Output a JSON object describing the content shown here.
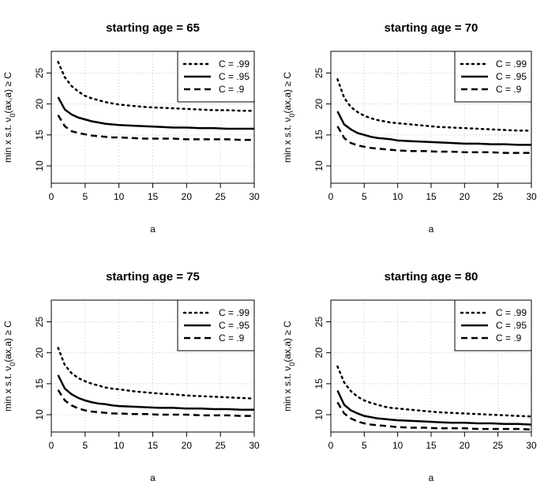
{
  "chart_data": [
    {
      "type": "line",
      "title": "starting age = 65",
      "xlabel": "a",
      "ylabel": {
        "pre": "min  x  s.t.  ",
        "sym": "ν",
        "sub": "0",
        "post": "(ax,a) ≥ C"
      },
      "xlim": [
        0,
        30
      ],
      "ylim": [
        7.2,
        28.5
      ],
      "xticks": [
        0,
        5,
        10,
        15,
        20,
        25,
        30
      ],
      "yticks": [
        10,
        15,
        20,
        25
      ],
      "grid": true,
      "legend_position": "top-right",
      "x": [
        1,
        2,
        3,
        4,
        5,
        6,
        7,
        8,
        9,
        10,
        12,
        14,
        16,
        18,
        20,
        22,
        24,
        26,
        28,
        30
      ],
      "series": [
        {
          "name": "C = .99",
          "style": "dotted",
          "values": [
            26.8,
            24.3,
            22.9,
            22.0,
            21.3,
            20.9,
            20.6,
            20.3,
            20.1,
            19.9,
            19.7,
            19.5,
            19.4,
            19.3,
            19.2,
            19.1,
            19.0,
            19.0,
            18.9,
            18.9
          ]
        },
        {
          "name": "C = .95",
          "style": "solid",
          "values": [
            21.1,
            19.1,
            18.3,
            17.8,
            17.5,
            17.2,
            17.0,
            16.8,
            16.7,
            16.6,
            16.5,
            16.4,
            16.3,
            16.2,
            16.2,
            16.1,
            16.1,
            16.0,
            16.0,
            16.0
          ]
        },
        {
          "name": "C = .9",
          "style": "dashed",
          "values": [
            18.2,
            16.4,
            15.6,
            15.3,
            15.1,
            14.9,
            14.8,
            14.7,
            14.6,
            14.6,
            14.5,
            14.4,
            14.4,
            14.4,
            14.3,
            14.3,
            14.3,
            14.3,
            14.2,
            14.2
          ]
        }
      ]
    },
    {
      "type": "line",
      "title": "starting age = 70",
      "xlabel": "a",
      "ylabel": {
        "pre": "min  x  s.t.  ",
        "sym": "ν",
        "sub": "0",
        "post": "(ax,a) ≥ C"
      },
      "xlim": [
        0,
        30
      ],
      "ylim": [
        7.2,
        28.5
      ],
      "xticks": [
        0,
        5,
        10,
        15,
        20,
        25,
        30
      ],
      "yticks": [
        10,
        15,
        20,
        25
      ],
      "grid": true,
      "legend_position": "top-right",
      "x": [
        1,
        2,
        3,
        4,
        5,
        6,
        7,
        8,
        9,
        10,
        12,
        14,
        16,
        18,
        20,
        22,
        24,
        26,
        28,
        30
      ],
      "series": [
        {
          "name": "C = .99",
          "style": "dotted",
          "values": [
            24.0,
            21.0,
            19.5,
            18.7,
            18.1,
            17.7,
            17.4,
            17.2,
            17.0,
            16.9,
            16.7,
            16.5,
            16.3,
            16.2,
            16.1,
            16.0,
            15.9,
            15.8,
            15.7,
            15.7
          ]
        },
        {
          "name": "C = .95",
          "style": "solid",
          "values": [
            18.8,
            16.7,
            15.9,
            15.3,
            15.0,
            14.7,
            14.5,
            14.4,
            14.3,
            14.1,
            14.0,
            13.9,
            13.8,
            13.7,
            13.6,
            13.6,
            13.5,
            13.5,
            13.4,
            13.4
          ]
        },
        {
          "name": "C = .9",
          "style": "dashed",
          "values": [
            16.4,
            14.5,
            13.7,
            13.3,
            13.1,
            12.9,
            12.8,
            12.7,
            12.6,
            12.5,
            12.4,
            12.4,
            12.3,
            12.3,
            12.2,
            12.2,
            12.2,
            12.1,
            12.1,
            12.1
          ]
        }
      ]
    },
    {
      "type": "line",
      "title": "starting age = 75",
      "xlabel": "a",
      "ylabel": {
        "pre": "min  x  s.t.  ",
        "sym": "ν",
        "sub": "0",
        "post": "(ax,a) ≥ C"
      },
      "xlim": [
        0,
        30
      ],
      "ylim": [
        7.2,
        28.5
      ],
      "xticks": [
        0,
        5,
        10,
        15,
        20,
        25,
        30
      ],
      "yticks": [
        10,
        15,
        20,
        25
      ],
      "grid": true,
      "legend_position": "top-right",
      "x": [
        1,
        2,
        3,
        4,
        5,
        6,
        7,
        8,
        9,
        10,
        12,
        14,
        16,
        18,
        20,
        22,
        24,
        26,
        28,
        30
      ],
      "series": [
        {
          "name": "C = .99",
          "style": "dotted",
          "values": [
            20.8,
            18.0,
            16.7,
            15.9,
            15.4,
            15.0,
            14.7,
            14.4,
            14.2,
            14.1,
            13.8,
            13.6,
            13.4,
            13.3,
            13.1,
            13.0,
            12.9,
            12.8,
            12.7,
            12.6
          ]
        },
        {
          "name": "C = .95",
          "style": "solid",
          "values": [
            16.4,
            14.2,
            13.3,
            12.7,
            12.3,
            12.0,
            11.8,
            11.7,
            11.5,
            11.4,
            11.3,
            11.2,
            11.1,
            11.1,
            11.0,
            11.0,
            10.9,
            10.9,
            10.8,
            10.8
          ]
        },
        {
          "name": "C = .9",
          "style": "dashed",
          "values": [
            14.0,
            12.3,
            11.5,
            11.0,
            10.7,
            10.5,
            10.4,
            10.3,
            10.2,
            10.2,
            10.1,
            10.1,
            10.0,
            10.0,
            10.0,
            9.9,
            9.9,
            9.9,
            9.8,
            9.8
          ]
        }
      ]
    },
    {
      "type": "line",
      "title": "starting age = 80",
      "xlabel": "a",
      "ylabel": {
        "pre": "min  x  s.t.  ",
        "sym": "ν",
        "sub": "0",
        "post": "(ax,a) ≥ C"
      },
      "xlim": [
        0,
        30
      ],
      "ylim": [
        7.2,
        28.5
      ],
      "xticks": [
        0,
        5,
        10,
        15,
        20,
        25,
        30
      ],
      "yticks": [
        10,
        15,
        20,
        25
      ],
      "grid": true,
      "legend_position": "top-right",
      "x": [
        1,
        2,
        3,
        4,
        5,
        6,
        7,
        8,
        9,
        10,
        12,
        14,
        16,
        18,
        20,
        22,
        24,
        26,
        28,
        30
      ],
      "series": [
        {
          "name": "C = .99",
          "style": "dotted",
          "values": [
            17.8,
            15.2,
            13.8,
            12.9,
            12.3,
            11.9,
            11.6,
            11.3,
            11.1,
            11.0,
            10.8,
            10.6,
            10.4,
            10.3,
            10.2,
            10.1,
            10.0,
            9.9,
            9.8,
            9.7
          ]
        },
        {
          "name": "C = .95",
          "style": "solid",
          "values": [
            13.9,
            11.6,
            10.7,
            10.2,
            9.8,
            9.6,
            9.4,
            9.3,
            9.2,
            9.1,
            9.0,
            8.9,
            8.8,
            8.7,
            8.7,
            8.6,
            8.6,
            8.5,
            8.5,
            8.4
          ]
        },
        {
          "name": "C = .9",
          "style": "dashed",
          "values": [
            12.0,
            10.2,
            9.4,
            8.9,
            8.6,
            8.4,
            8.3,
            8.2,
            8.1,
            8.0,
            7.9,
            7.9,
            7.8,
            7.8,
            7.8,
            7.7,
            7.7,
            7.7,
            7.7,
            7.6
          ]
        }
      ]
    }
  ]
}
